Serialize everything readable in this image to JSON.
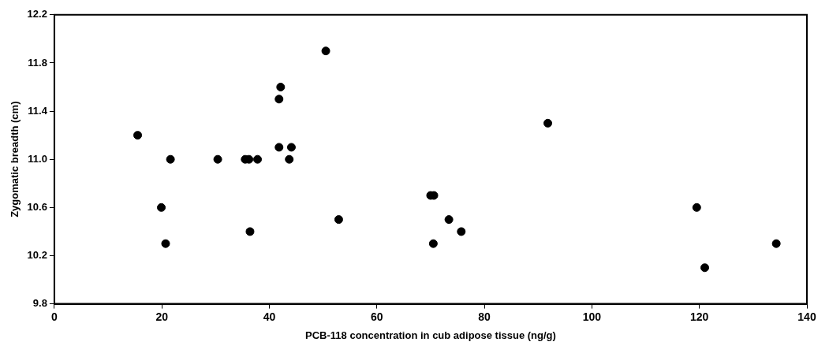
{
  "chart_data": {
    "type": "scatter",
    "xlabel": "PCB-118 concentration in cub adipose tissue (ng/g)",
    "ylabel": "Zygomatic breadth (cm)",
    "x": [
      15.5,
      21.6,
      19.9,
      20.7,
      30.4,
      35.5,
      36.2,
      37.8,
      36.4,
      41.8,
      44.1,
      43.7,
      41.8,
      42.1,
      50.5,
      52.9,
      70.0,
      70.6,
      70.5,
      73.4,
      75.7,
      91.8,
      119.5,
      121,
      134.3
    ],
    "values": [
      11.2,
      11.0,
      10.6,
      10.3,
      11.0,
      11.0,
      11.0,
      11.0,
      10.4,
      11.1,
      11.1,
      11.0,
      11.5,
      11.6,
      11.9,
      10.5,
      10.7,
      10.7,
      10.3,
      10.5,
      10.4,
      11.3,
      10.6,
      10.1,
      10.3
    ],
    "color": "#000000",
    "marker": "circle",
    "xlim": [
      0,
      140
    ],
    "xticks": [
      0,
      20,
      40,
      60,
      80,
      100,
      120,
      140
    ],
    "ylim": [
      9.8,
      12.2
    ],
    "yticks": [
      9.8,
      10.2,
      10.6,
      {
        "value": 11,
        "label": "11.0"
      },
      11.4,
      11.8,
      12.2
    ],
    "grid": false,
    "legend": false
  }
}
